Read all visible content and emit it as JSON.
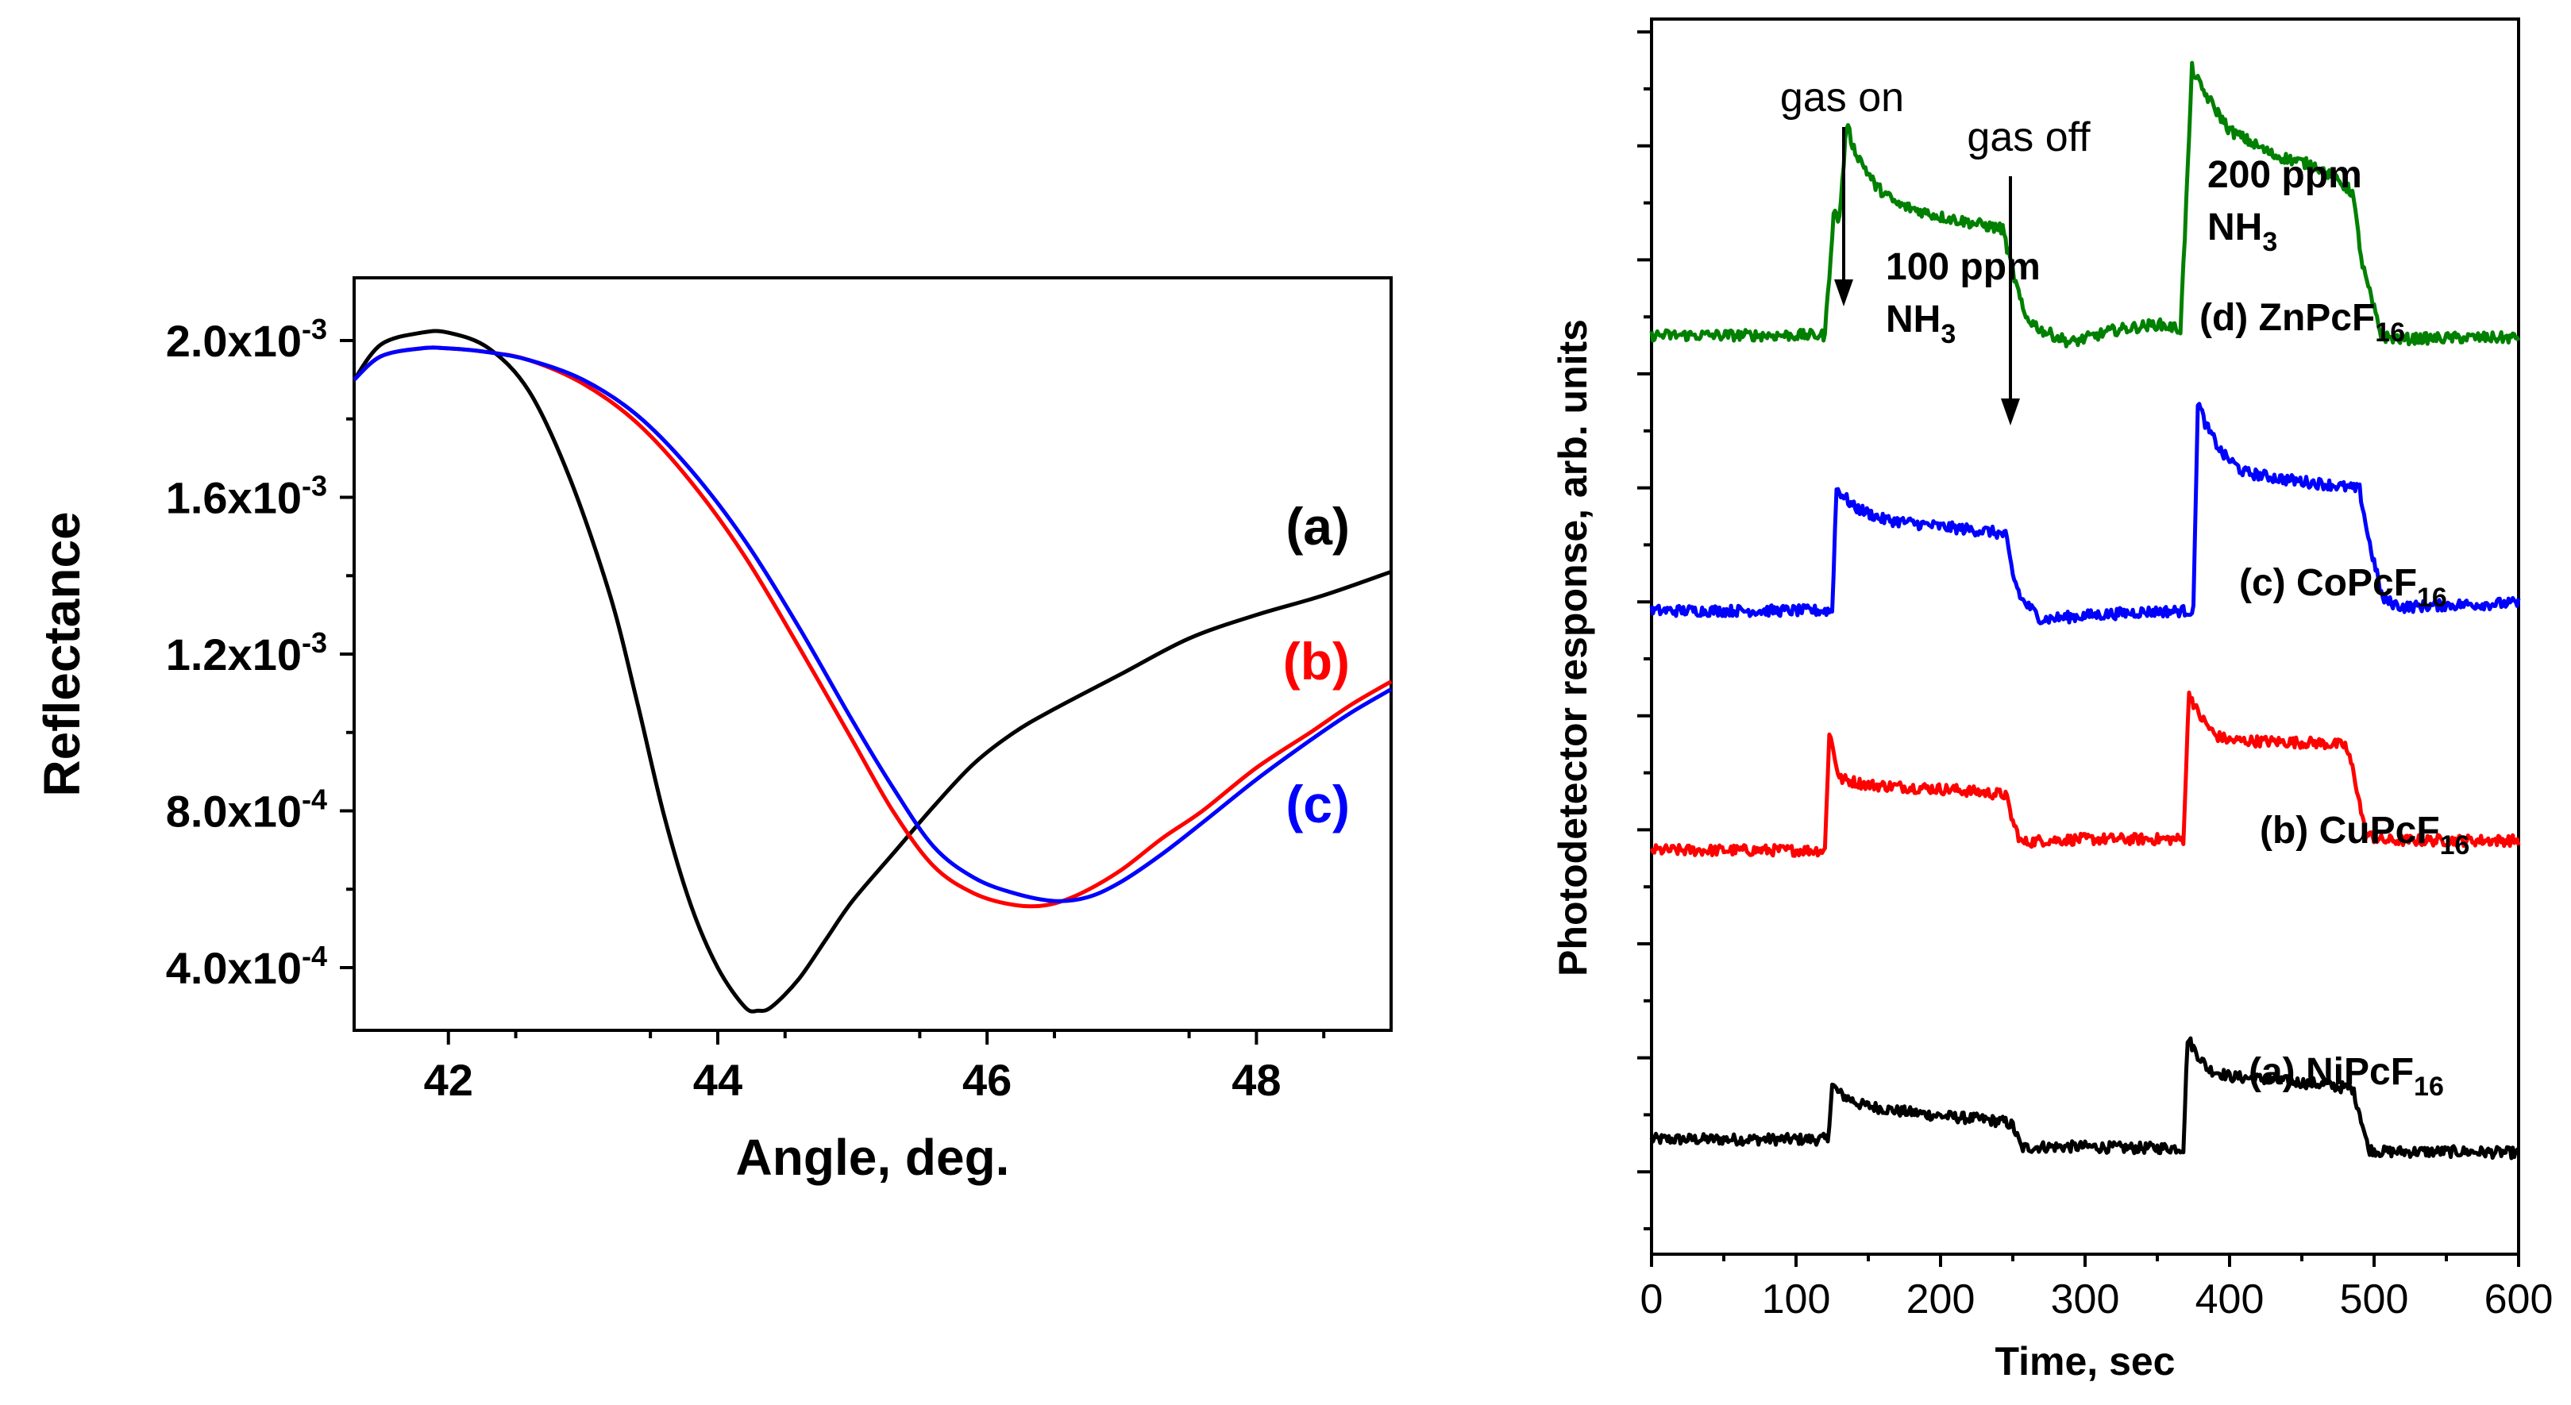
{
  "chart_data": [
    {
      "type": "line",
      "xlabel": "Angle, deg.",
      "ylabel": "Reflectance",
      "xlim": [
        41.3,
        49.0
      ],
      "ylim": [
        0.00024,
        0.00216
      ],
      "xticks": [
        42,
        44,
        46,
        48
      ],
      "xtick_labels": [
        "42",
        "44",
        "46",
        "48"
      ],
      "yticks": [
        0.0004,
        0.0008,
        0.0012,
        0.0016,
        0.002
      ],
      "ytick_labels": [
        {
          "mantissa": "4.0x10",
          "exp": "-4"
        },
        {
          "mantissa": "8.0x10",
          "exp": "-4"
        },
        {
          "mantissa": "1.2x10",
          "exp": "-3"
        },
        {
          "mantissa": "1.6x10",
          "exp": "-3"
        },
        {
          "mantissa": "2.0x10",
          "exp": "-3"
        }
      ],
      "series": [
        {
          "name": "(a)",
          "color": "#000000",
          "x": [
            41.3,
            41.5,
            41.8,
            42.0,
            42.3,
            42.6,
            42.9,
            43.2,
            43.4,
            43.6,
            43.8,
            44.0,
            44.2,
            44.3,
            44.4,
            44.6,
            44.8,
            45.0,
            45.3,
            45.6,
            45.9,
            46.2,
            46.5,
            47.0,
            47.5,
            48.0,
            48.5,
            49.0
          ],
          "y": [
            0.0019,
            0.00199,
            0.00202,
            0.00202,
            0.00198,
            0.00187,
            0.00165,
            0.00135,
            0.00108,
            0.00079,
            0.00056,
            0.0004,
            0.0003,
            0.00029,
            0.0003,
            0.00037,
            0.00047,
            0.00057,
            0.00069,
            0.00081,
            0.00092,
            0.001,
            0.00106,
            0.00115,
            0.00124,
            0.0013,
            0.00135,
            0.00141
          ]
        },
        {
          "name": "(b)",
          "color": "#ff0000",
          "x": [
            41.3,
            41.5,
            41.8,
            42.0,
            42.3,
            42.6,
            43.0,
            43.4,
            43.8,
            44.2,
            44.6,
            45.0,
            45.3,
            45.6,
            45.9,
            46.2,
            46.45,
            46.7,
            47.0,
            47.3,
            47.6,
            48.0,
            48.4,
            48.7,
            49.0
          ],
          "y": [
            0.0019,
            0.00196,
            0.00198,
            0.00198,
            0.00197,
            0.00195,
            0.00189,
            0.00179,
            0.00164,
            0.00145,
            0.00122,
            0.00098,
            0.0008,
            0.00066,
            0.00059,
            0.00056,
            0.00056,
            0.00059,
            0.00065,
            0.00073,
            0.0008,
            0.00091,
            0.001,
            0.00107,
            0.00113
          ]
        },
        {
          "name": "(c)",
          "color": "#0000ff",
          "x": [
            41.3,
            41.5,
            41.8,
            42.0,
            42.3,
            42.6,
            43.0,
            43.4,
            43.8,
            44.2,
            44.6,
            45.0,
            45.3,
            45.6,
            45.9,
            46.2,
            46.5,
            46.75,
            47.0,
            47.3,
            47.6,
            48.0,
            48.4,
            48.7,
            49.0
          ],
          "y": [
            0.0019,
            0.00196,
            0.00198,
            0.00198,
            0.00197,
            0.00195,
            0.0019,
            0.00181,
            0.00167,
            0.00149,
            0.00127,
            0.00103,
            0.00086,
            0.00071,
            0.00063,
            0.00059,
            0.00057,
            0.00058,
            0.00062,
            0.00069,
            0.00077,
            0.00088,
            0.00098,
            0.00105,
            0.00111
          ]
        }
      ]
    },
    {
      "type": "line",
      "xlabel": "Time, sec",
      "ylabel": "Photodetector response, arb. units",
      "xlim": [
        0,
        600
      ],
      "ylim": [
        0,
        100
      ],
      "xticks": [
        0,
        100,
        200,
        300,
        400,
        500,
        600
      ],
      "xtick_labels": [
        "0",
        "100",
        "200",
        "300",
        "400",
        "500",
        "600"
      ],
      "series": [
        {
          "name": "(a) NiPcF16",
          "label": "(a)  NiPcF",
          "sub": "16",
          "color": "#000000",
          "x": [
            0,
            122,
            125,
            130,
            145,
            170,
            200,
            230,
            245,
            250,
            256,
            270,
            300,
            330,
            360,
            368,
            371,
            376,
            385,
            400,
            430,
            460,
            485,
            490,
            496,
            505,
            530,
            560,
            600
          ],
          "y": [
            9.3,
            9.3,
            13.7,
            13.0,
            12.1,
            11.6,
            11.2,
            10.9,
            10.7,
            10.4,
            8.6,
            8.7,
            8.7,
            8.6,
            8.6,
            8.6,
            17.5,
            16.5,
            15.0,
            14.4,
            14.1,
            13.8,
            13.4,
            11.5,
            8.5,
            8.3,
            8.3,
            8.3,
            8.2
          ]
        },
        {
          "name": "(b) CuPcF16",
          "label": "(b)  CuPcF",
          "sub": "16",
          "color": "#ff0000",
          "x": [
            0,
            120,
            123,
            130,
            150,
            180,
            210,
            245,
            250,
            256,
            270,
            300,
            340,
            368,
            372,
            378,
            390,
            400,
            430,
            460,
            480,
            486,
            494,
            505,
            530,
            560,
            600
          ],
          "y": [
            32.7,
            32.7,
            42.3,
            38.5,
            38.0,
            37.8,
            37.6,
            37.2,
            35.0,
            33.3,
            33.5,
            33.6,
            33.6,
            33.6,
            45.5,
            43.8,
            42.0,
            41.6,
            41.5,
            41.4,
            41.2,
            39.0,
            34.0,
            33.5,
            33.5,
            33.5,
            33.5
          ]
        },
        {
          "name": "(c) CoPcF16",
          "label": "(c)  CoPcF",
          "sub": "16",
          "color": "#0000ff",
          "x": [
            0,
            125,
            128,
            140,
            160,
            200,
            235,
            245,
            250,
            256,
            270,
            300,
            340,
            375,
            378,
            384,
            395,
            410,
            440,
            470,
            490,
            496,
            506,
            520,
            560,
            600
          ],
          "y": [
            52.1,
            52.1,
            62.0,
            60.5,
            59.5,
            58.9,
            58.5,
            58.2,
            55.0,
            53.0,
            51.4,
            51.7,
            52.0,
            52.1,
            69.0,
            67.0,
            64.8,
            63.3,
            62.7,
            62.3,
            61.9,
            58.0,
            53.0,
            52.4,
            52.6,
            52.7
          ]
        },
        {
          "name": "(d) ZnPcF16",
          "label": "(d)  ZnPcF",
          "sub": "16",
          "color": "#008000",
          "x": [
            0,
            120,
            126,
            130,
            135,
            140,
            155,
            170,
            200,
            230,
            243,
            250,
            258,
            270,
            290,
            320,
            350,
            366,
            370,
            374,
            380,
            400,
            430,
            460,
            485,
            492,
            505,
            520,
            560,
            600
          ],
          "y": [
            74.4,
            74.4,
            84.3,
            83.8,
            91.5,
            89.5,
            86.5,
            85.0,
            84.0,
            83.3,
            83.0,
            79.5,
            76.0,
            74.8,
            73.8,
            74.8,
            75.3,
            74.9,
            85.0,
            96.0,
            94.5,
            91.0,
            89.0,
            88.1,
            86.0,
            80.0,
            74.3,
            74.1,
            74.2,
            74.2
          ]
        }
      ],
      "annotations": {
        "gas_on": "gas on",
        "gas_off": "gas off",
        "ppm100": "100 ppm",
        "ppm200": "200 ppm",
        "nh": "NH",
        "nh_sub": "3"
      }
    }
  ]
}
